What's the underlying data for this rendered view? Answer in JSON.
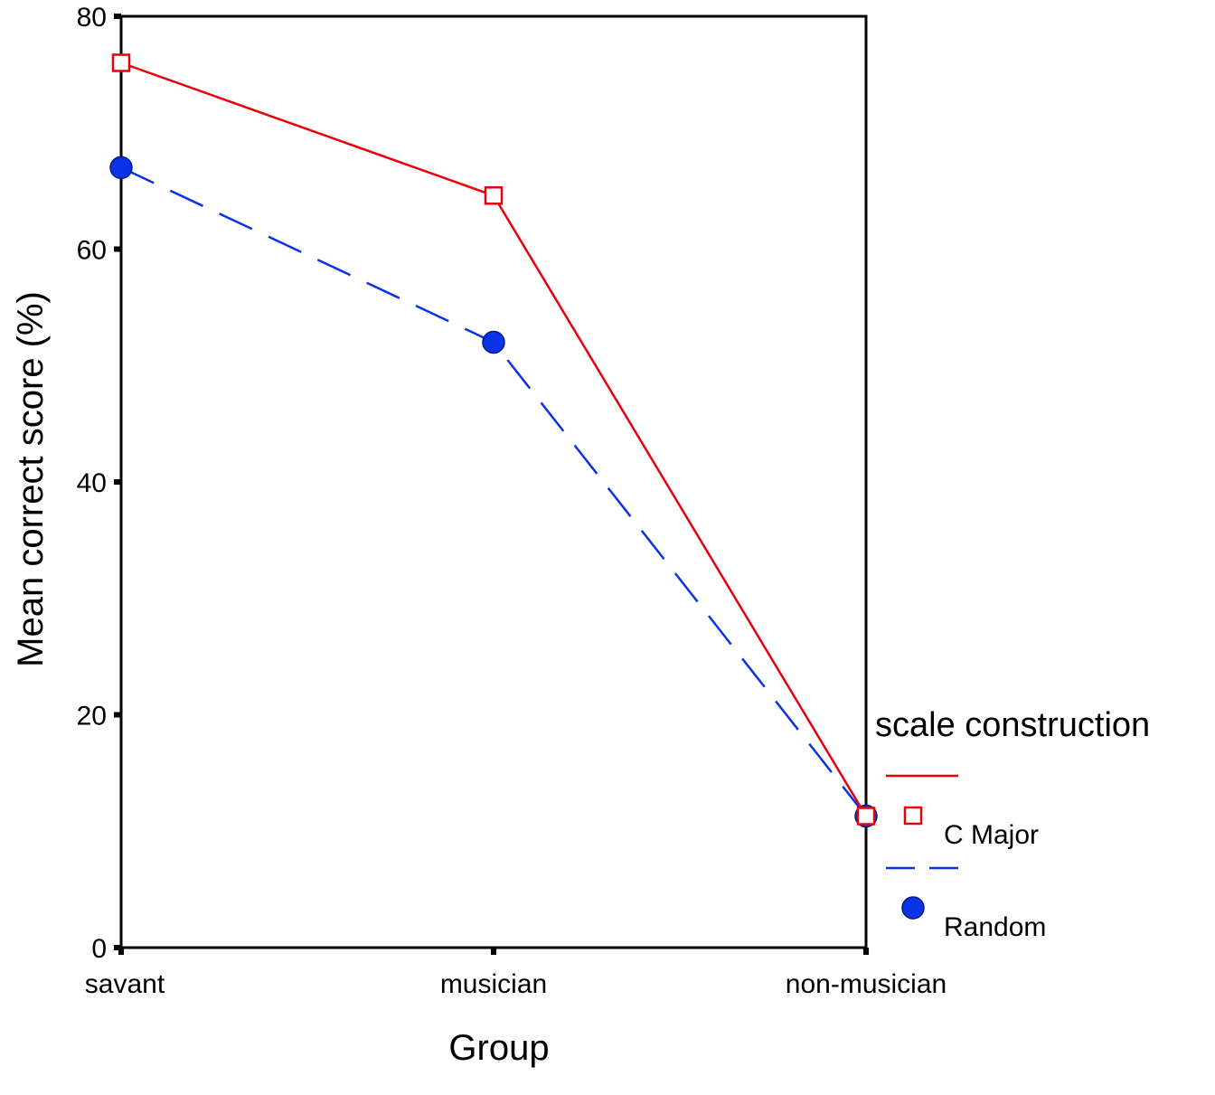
{
  "chart_data": {
    "type": "line",
    "title": "",
    "xlabel": "Group",
    "ylabel": "Mean correct score (%)",
    "categories": [
      "savant",
      "musician",
      "non-musician"
    ],
    "ylim": [
      0,
      80
    ],
    "yticks": [
      0,
      20,
      40,
      60,
      80
    ],
    "grid": false,
    "legend": {
      "title": "scale construction",
      "placement": "right"
    },
    "series": [
      {
        "name": "C Major",
        "values": [
          76,
          64.6,
          11.3
        ],
        "color": "#e8000b",
        "line_style": "solid",
        "marker": "square-open"
      },
      {
        "name": "Random",
        "values": [
          67,
          52,
          11.3
        ],
        "color": "#0a32e6",
        "line_style": "dashed",
        "marker": "circle-filled"
      }
    ]
  }
}
